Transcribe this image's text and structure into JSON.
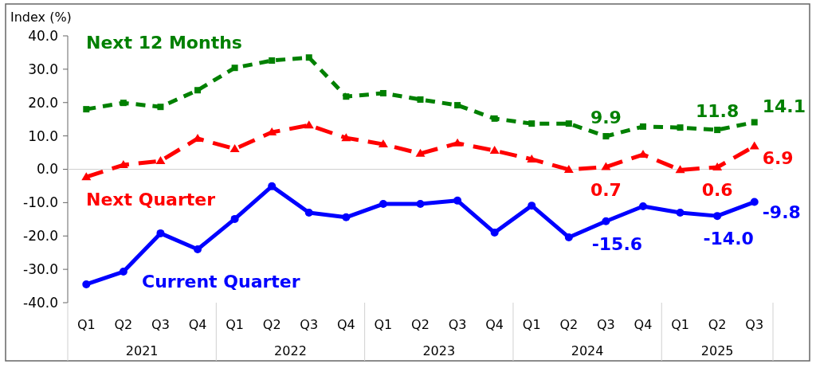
{
  "chart_data": {
    "type": "line",
    "ylabel": "Index (%)",
    "categories": [
      "Q1",
      "Q2",
      "Q3",
      "Q4",
      "Q1",
      "Q2",
      "Q3",
      "Q4",
      "Q1",
      "Q2",
      "Q3",
      "Q4",
      "Q1",
      "Q2",
      "Q3",
      "Q4",
      "Q1",
      "Q2",
      "Q3"
    ],
    "annotations": [
      "2021",
      "2022",
      "2023",
      "2024",
      "2025"
    ],
    "ylim": [
      -40,
      40
    ],
    "yticks": [
      {
        "value": -40,
        "label": "-40.0"
      },
      {
        "value": -30,
        "label": "-30.0"
      },
      {
        "value": -20,
        "label": "-20.0"
      },
      {
        "value": -10,
        "label": "-10.0"
      },
      {
        "value": 0,
        "label": "0.0"
      },
      {
        "value": 10,
        "label": "10.0"
      },
      {
        "value": 20,
        "label": "20.0"
      },
      {
        "value": 30,
        "label": "30.0"
      },
      {
        "value": 40,
        "label": "40.0"
      }
    ],
    "series": [
      {
        "name": "Next 12 Months",
        "color": "#008000",
        "marker": "square",
        "line_style": "dashed",
        "values": [
          18.0,
          19.9,
          18.7,
          23.7,
          30.4,
          32.6,
          33.5,
          21.8,
          22.8,
          20.9,
          19.2,
          15.2,
          13.7,
          13.7,
          9.9,
          12.8,
          12.5,
          11.8,
          14.1
        ],
        "value_labels": [
          null,
          null,
          null,
          null,
          null,
          null,
          null,
          null,
          null,
          null,
          null,
          null,
          null,
          null,
          "9.9",
          null,
          null,
          "11.8",
          "14.1"
        ]
      },
      {
        "name": "Next Quarter",
        "color": "#ff0000",
        "marker": "triangle",
        "line_style": "dashed",
        "values": [
          -2.3,
          1.3,
          2.5,
          9.2,
          6.1,
          11.1,
          13.2,
          9.4,
          7.5,
          4.7,
          7.8,
          5.6,
          3.0,
          -0.1,
          0.7,
          4.4,
          -0.2,
          0.6,
          6.9
        ],
        "value_labels": [
          null,
          null,
          null,
          null,
          null,
          null,
          null,
          null,
          null,
          null,
          null,
          null,
          null,
          null,
          "0.7",
          null,
          null,
          "0.6",
          "6.9"
        ]
      },
      {
        "name": "Current Quarter",
        "color": "#0000ff",
        "marker": "circle",
        "line_style": "solid",
        "values": [
          -34.5,
          -30.7,
          -19.2,
          -24.0,
          -14.9,
          -5.1,
          -13.0,
          -14.4,
          -10.4,
          -10.4,
          -9.4,
          -19.0,
          -10.9,
          -20.4,
          -15.6,
          -11.1,
          -13.0,
          -14.0,
          -9.8
        ],
        "value_labels": [
          null,
          null,
          null,
          null,
          null,
          null,
          null,
          null,
          null,
          null,
          null,
          null,
          null,
          null,
          "-15.6",
          null,
          null,
          "-14.0",
          "-9.8"
        ]
      }
    ]
  }
}
